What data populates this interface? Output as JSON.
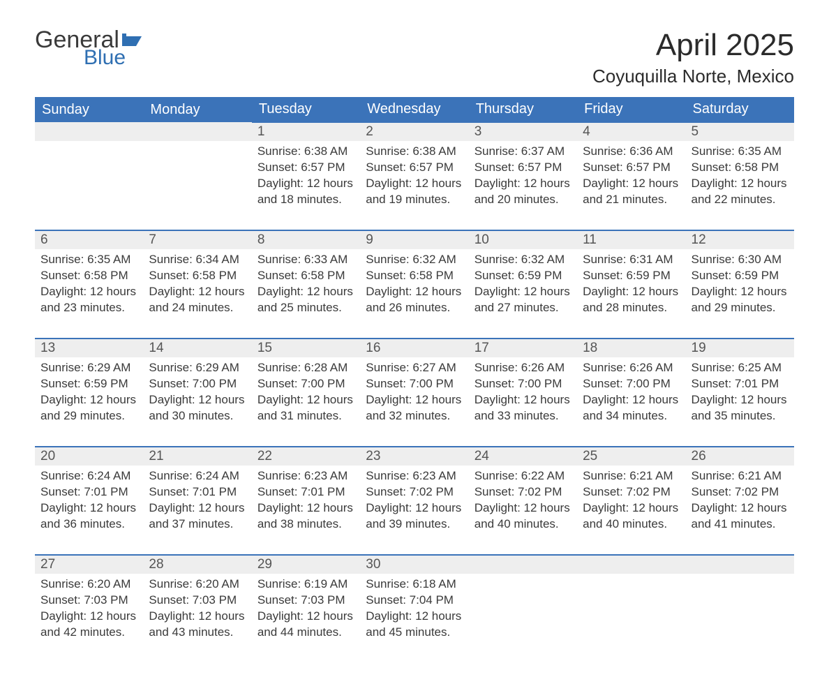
{
  "brand": {
    "word1": "General",
    "word2": "Blue",
    "flag_color": "#2f6fb2"
  },
  "title": "April 2025",
  "location": "Coyuquilla Norte, Mexico",
  "colors": {
    "header_bg": "#3b73b9",
    "header_text": "#ffffff",
    "daynum_bg": "#eeeeee",
    "daynum_border": "#3b73b9",
    "text": "#3a3a3a",
    "page_bg": "#ffffff"
  },
  "typography": {
    "month_title_size_pt": 33,
    "location_size_pt": 20,
    "weekday_header_size_pt": 15,
    "daynum_size_pt": 14,
    "body_size_pt": 13
  },
  "layout": {
    "columns": 7,
    "rows": 5,
    "week_start": "Sunday"
  },
  "weekdays": [
    "Sunday",
    "Monday",
    "Tuesday",
    "Wednesday",
    "Thursday",
    "Friday",
    "Saturday"
  ],
  "labels": {
    "sunrise": "Sunrise:",
    "sunset": "Sunset:",
    "daylight": "Daylight:",
    "hours": "hours",
    "and": "and",
    "minutes": "minutes."
  },
  "weeks": [
    [
      null,
      null,
      {
        "n": "1",
        "sunrise": "6:38 AM",
        "sunset": "6:57 PM",
        "dl_h": 12,
        "dl_m": 18
      },
      {
        "n": "2",
        "sunrise": "6:38 AM",
        "sunset": "6:57 PM",
        "dl_h": 12,
        "dl_m": 19
      },
      {
        "n": "3",
        "sunrise": "6:37 AM",
        "sunset": "6:57 PM",
        "dl_h": 12,
        "dl_m": 20
      },
      {
        "n": "4",
        "sunrise": "6:36 AM",
        "sunset": "6:57 PM",
        "dl_h": 12,
        "dl_m": 21
      },
      {
        "n": "5",
        "sunrise": "6:35 AM",
        "sunset": "6:58 PM",
        "dl_h": 12,
        "dl_m": 22
      }
    ],
    [
      {
        "n": "6",
        "sunrise": "6:35 AM",
        "sunset": "6:58 PM",
        "dl_h": 12,
        "dl_m": 23
      },
      {
        "n": "7",
        "sunrise": "6:34 AM",
        "sunset": "6:58 PM",
        "dl_h": 12,
        "dl_m": 24
      },
      {
        "n": "8",
        "sunrise": "6:33 AM",
        "sunset": "6:58 PM",
        "dl_h": 12,
        "dl_m": 25
      },
      {
        "n": "9",
        "sunrise": "6:32 AM",
        "sunset": "6:58 PM",
        "dl_h": 12,
        "dl_m": 26
      },
      {
        "n": "10",
        "sunrise": "6:32 AM",
        "sunset": "6:59 PM",
        "dl_h": 12,
        "dl_m": 27
      },
      {
        "n": "11",
        "sunrise": "6:31 AM",
        "sunset": "6:59 PM",
        "dl_h": 12,
        "dl_m": 28
      },
      {
        "n": "12",
        "sunrise": "6:30 AM",
        "sunset": "6:59 PM",
        "dl_h": 12,
        "dl_m": 29
      }
    ],
    [
      {
        "n": "13",
        "sunrise": "6:29 AM",
        "sunset": "6:59 PM",
        "dl_h": 12,
        "dl_m": 29
      },
      {
        "n": "14",
        "sunrise": "6:29 AM",
        "sunset": "7:00 PM",
        "dl_h": 12,
        "dl_m": 30
      },
      {
        "n": "15",
        "sunrise": "6:28 AM",
        "sunset": "7:00 PM",
        "dl_h": 12,
        "dl_m": 31
      },
      {
        "n": "16",
        "sunrise": "6:27 AM",
        "sunset": "7:00 PM",
        "dl_h": 12,
        "dl_m": 32
      },
      {
        "n": "17",
        "sunrise": "6:26 AM",
        "sunset": "7:00 PM",
        "dl_h": 12,
        "dl_m": 33
      },
      {
        "n": "18",
        "sunrise": "6:26 AM",
        "sunset": "7:00 PM",
        "dl_h": 12,
        "dl_m": 34
      },
      {
        "n": "19",
        "sunrise": "6:25 AM",
        "sunset": "7:01 PM",
        "dl_h": 12,
        "dl_m": 35
      }
    ],
    [
      {
        "n": "20",
        "sunrise": "6:24 AM",
        "sunset": "7:01 PM",
        "dl_h": 12,
        "dl_m": 36
      },
      {
        "n": "21",
        "sunrise": "6:24 AM",
        "sunset": "7:01 PM",
        "dl_h": 12,
        "dl_m": 37
      },
      {
        "n": "22",
        "sunrise": "6:23 AM",
        "sunset": "7:01 PM",
        "dl_h": 12,
        "dl_m": 38
      },
      {
        "n": "23",
        "sunrise": "6:23 AM",
        "sunset": "7:02 PM",
        "dl_h": 12,
        "dl_m": 39
      },
      {
        "n": "24",
        "sunrise": "6:22 AM",
        "sunset": "7:02 PM",
        "dl_h": 12,
        "dl_m": 40
      },
      {
        "n": "25",
        "sunrise": "6:21 AM",
        "sunset": "7:02 PM",
        "dl_h": 12,
        "dl_m": 40
      },
      {
        "n": "26",
        "sunrise": "6:21 AM",
        "sunset": "7:02 PM",
        "dl_h": 12,
        "dl_m": 41
      }
    ],
    [
      {
        "n": "27",
        "sunrise": "6:20 AM",
        "sunset": "7:03 PM",
        "dl_h": 12,
        "dl_m": 42
      },
      {
        "n": "28",
        "sunrise": "6:20 AM",
        "sunset": "7:03 PM",
        "dl_h": 12,
        "dl_m": 43
      },
      {
        "n": "29",
        "sunrise": "6:19 AM",
        "sunset": "7:03 PM",
        "dl_h": 12,
        "dl_m": 44
      },
      {
        "n": "30",
        "sunrise": "6:18 AM",
        "sunset": "7:04 PM",
        "dl_h": 12,
        "dl_m": 45
      },
      null,
      null,
      null
    ]
  ]
}
